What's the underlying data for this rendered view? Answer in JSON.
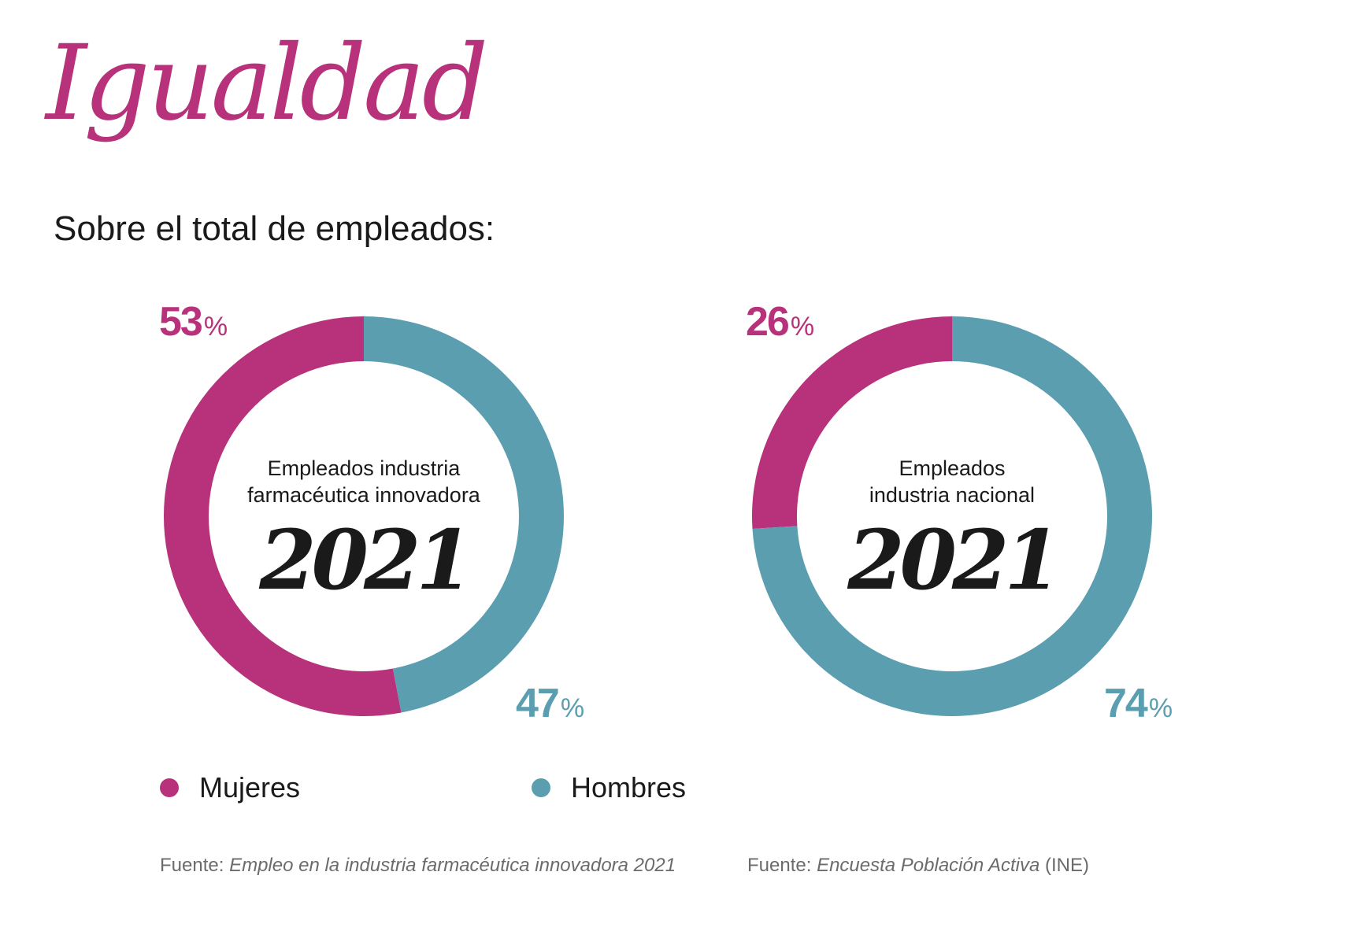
{
  "title": "Igualdad",
  "subtitle": "Sobre el total de empleados:",
  "colors": {
    "mujeres": "#B7327A",
    "hombres": "#5A9EAF"
  },
  "chart_data": [
    {
      "type": "pie",
      "center_label_lines": [
        "Empleados industria",
        "farmacéutica innovadora"
      ],
      "center_year": "2021",
      "categories": [
        "Mujeres",
        "Hombres"
      ],
      "values": [
        53,
        47
      ],
      "value_labels": [
        "53",
        "47"
      ],
      "unit": "%",
      "source_prefix": "Fuente:",
      "source_text": "Empleo en la industria farmacéutica innovadora 2021",
      "source_suffix": ""
    },
    {
      "type": "pie",
      "center_label_lines": [
        "Empleados",
        "industria nacional"
      ],
      "center_year": "2021",
      "categories": [
        "Mujeres",
        "Hombres"
      ],
      "values": [
        26,
        74
      ],
      "value_labels": [
        "26",
        "74"
      ],
      "unit": "%",
      "source_prefix": "Fuente:",
      "source_text": "Encuesta Población Activa",
      "source_suffix": "(INE)"
    }
  ],
  "legend": [
    {
      "label": "Mujeres",
      "color": "#B7327A"
    },
    {
      "label": "Hombres",
      "color": "#5A9EAF"
    }
  ]
}
